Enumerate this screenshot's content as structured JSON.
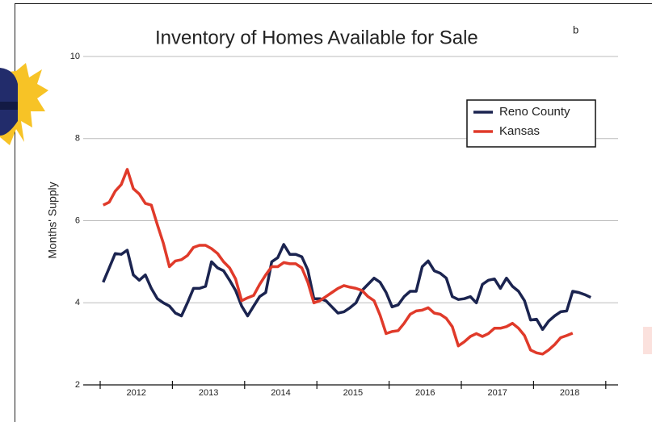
{
  "chart_data": {
    "type": "line",
    "title": "Inventory of Homes Available for Sale",
    "title_superscript": "b",
    "y_label": "Months' Supply",
    "categories": [
      null,
      null,
      null,
      null,
      null,
      null,
      "2012",
      null,
      null,
      null,
      null,
      null,
      null,
      null,
      null,
      null,
      null,
      null,
      "2013",
      null,
      null,
      null,
      null,
      null,
      null,
      null,
      null,
      null,
      null,
      null,
      "2014",
      null,
      null,
      null,
      null,
      null,
      null,
      null,
      null,
      null,
      null,
      null,
      "2015",
      null,
      null,
      null,
      null,
      null,
      null,
      null,
      null,
      null,
      null,
      null,
      "2016",
      null,
      null,
      null,
      null,
      null,
      null,
      null,
      null,
      null,
      null,
      null,
      "2017",
      null,
      null,
      null,
      null,
      null,
      null,
      null,
      null,
      null,
      null,
      null,
      "2018",
      null,
      null,
      null,
      null,
      null
    ],
    "series": [
      {
        "name": "Reno County",
        "color": "#1b2450",
        "values": [
          4.5,
          4.85,
          5.2,
          5.18,
          5.28,
          4.68,
          4.55,
          4.68,
          4.35,
          4.1,
          4.0,
          3.92,
          3.75,
          3.68,
          4.0,
          4.35,
          4.35,
          4.4,
          5.0,
          4.85,
          4.78,
          4.55,
          4.3,
          3.92,
          3.68,
          3.92,
          4.15,
          4.25,
          5.0,
          5.1,
          5.42,
          5.18,
          5.18,
          5.12,
          4.8,
          4.1,
          4.1,
          4.05,
          3.9,
          3.75,
          3.78,
          3.88,
          4.0,
          4.3,
          4.45,
          4.6,
          4.5,
          4.25,
          3.9,
          3.95,
          4.15,
          4.28,
          4.28,
          4.88,
          5.02,
          4.78,
          4.72,
          4.6,
          4.15,
          4.08,
          4.1,
          4.15,
          4.0,
          4.45,
          4.55,
          4.58,
          4.35,
          4.6,
          4.4,
          4.28,
          4.05,
          3.58,
          3.6,
          3.35,
          3.55,
          3.68,
          3.78,
          3.8,
          4.28,
          4.25,
          4.2,
          4.13,
          null,
          null
        ]
      },
      {
        "name": "Kansas",
        "color": "#e03a2a",
        "values": [
          6.38,
          6.45,
          6.72,
          6.88,
          7.25,
          6.78,
          6.65,
          6.42,
          6.38,
          5.9,
          5.45,
          4.88,
          5.02,
          5.05,
          5.15,
          5.35,
          5.4,
          5.4,
          5.32,
          5.2,
          5.0,
          4.85,
          4.58,
          4.05,
          4.12,
          4.18,
          4.45,
          4.68,
          4.88,
          4.88,
          4.98,
          4.95,
          4.95,
          4.85,
          4.5,
          4.0,
          4.05,
          4.15,
          4.25,
          4.35,
          4.42,
          4.38,
          4.35,
          4.3,
          4.15,
          4.05,
          3.7,
          3.25,
          3.3,
          3.32,
          3.5,
          3.72,
          3.8,
          3.82,
          3.88,
          3.75,
          3.72,
          3.62,
          3.42,
          2.95,
          3.05,
          3.18,
          3.25,
          3.18,
          3.25,
          3.38,
          3.38,
          3.42,
          3.5,
          3.38,
          3.2,
          2.85,
          2.78,
          2.75,
          2.85,
          2.98,
          3.15,
          3.2,
          3.26,
          null,
          null,
          null,
          null,
          null
        ]
      }
    ],
    "ylim": [
      2,
      10
    ],
    "yticks": [
      2,
      4,
      6,
      8,
      10
    ],
    "grid": true,
    "legend": "upper right"
  }
}
